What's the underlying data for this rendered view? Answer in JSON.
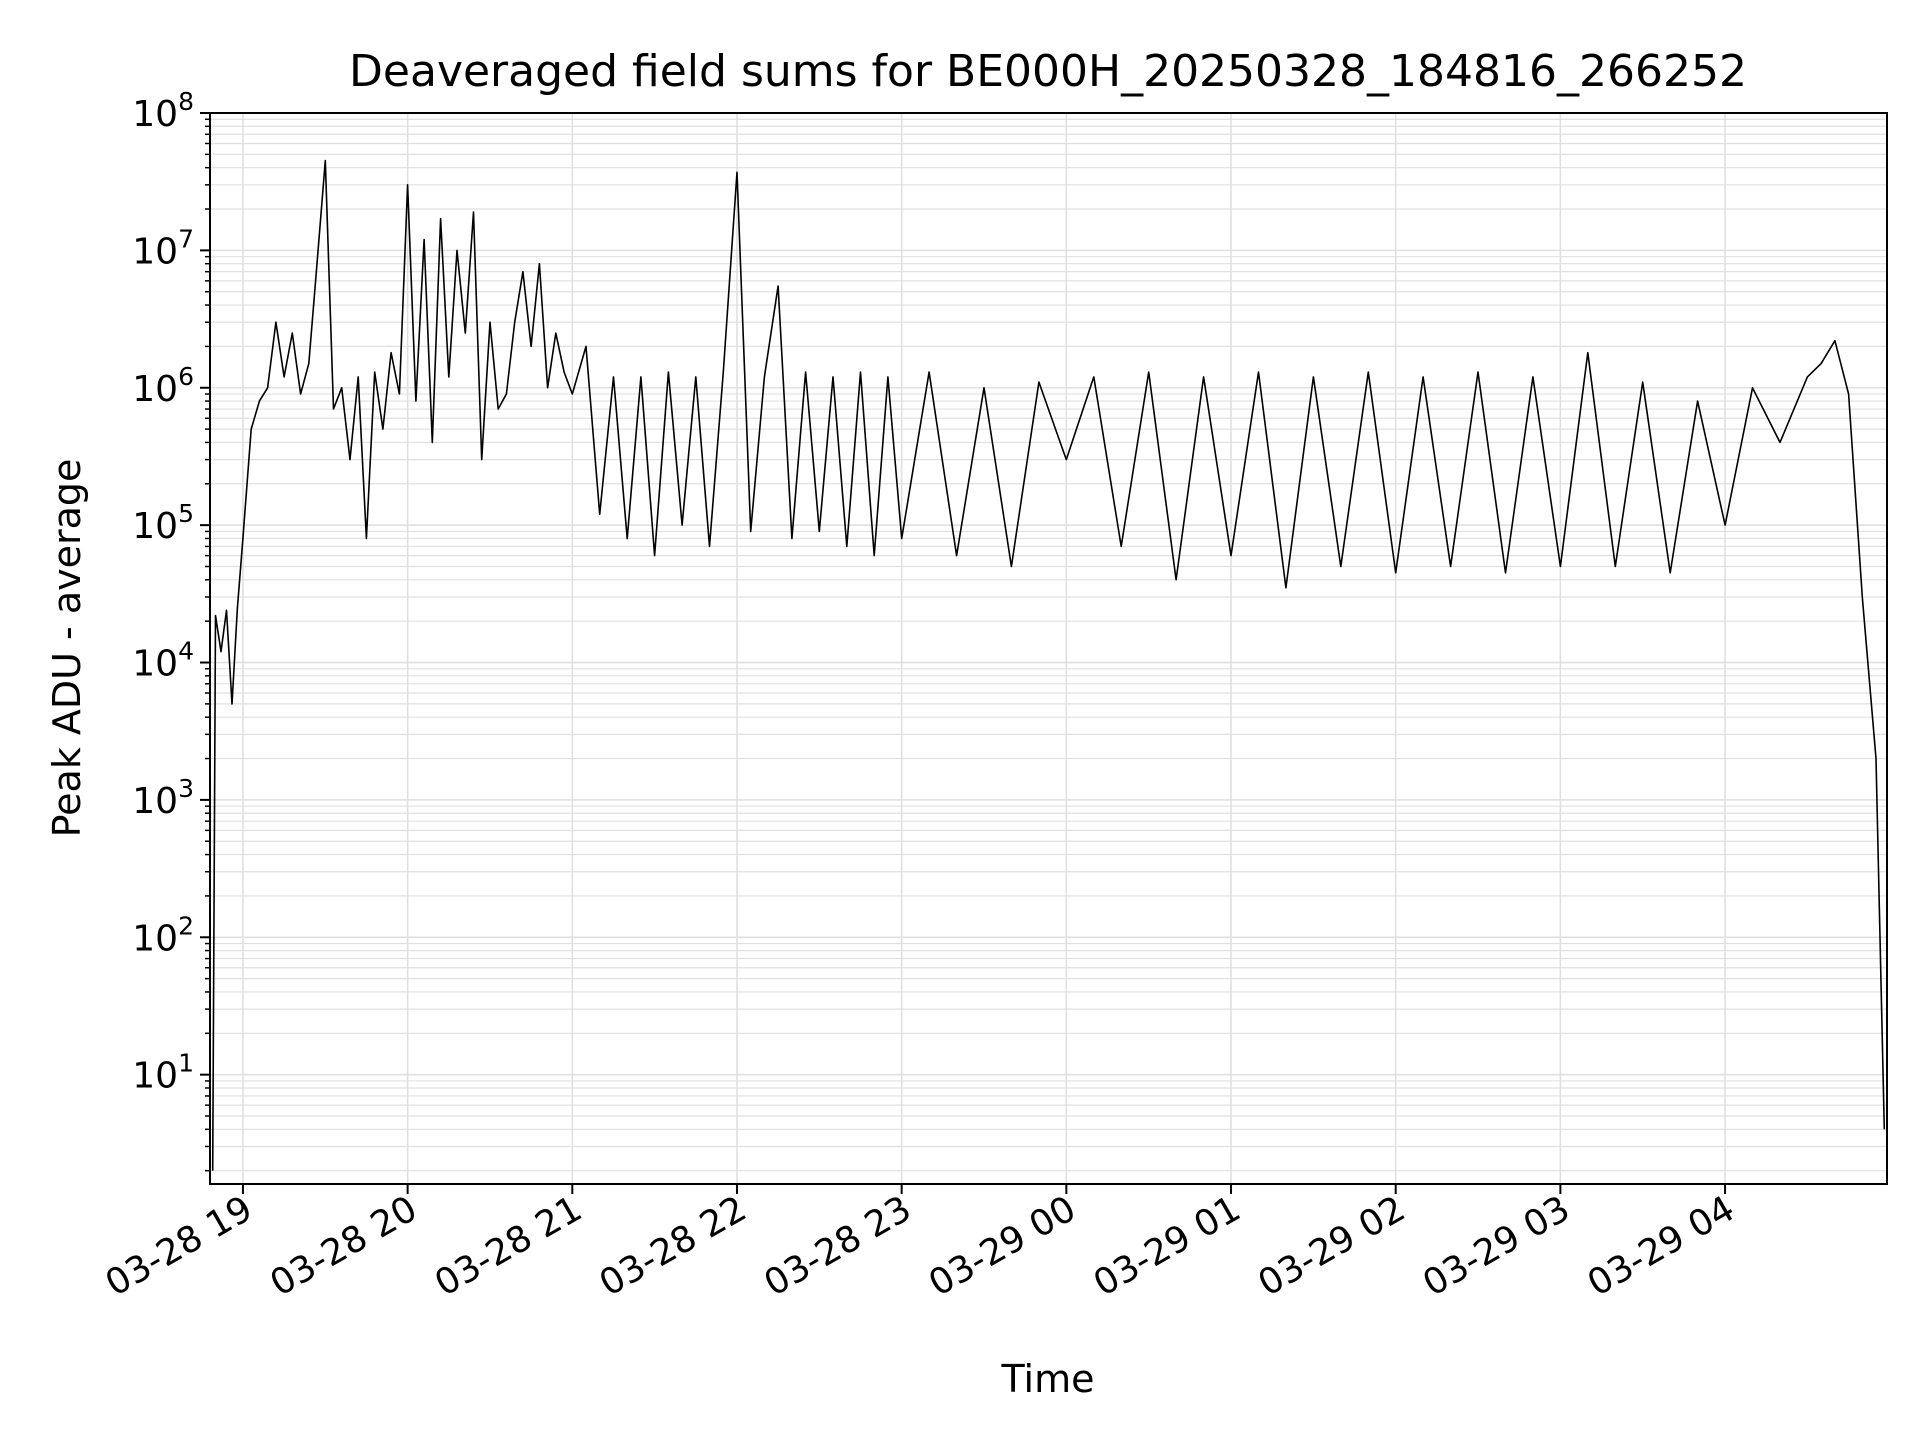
{
  "colors": {
    "line": "#000000",
    "grid": "#e0e0e0",
    "axes": "#000000",
    "background": "#ffffff"
  },
  "chart_data": {
    "type": "line",
    "title": "Deaveraged field sums for BE000H_20250328_184816_266252",
    "xlabel": "Time",
    "ylabel": "Peak ADU - average",
    "yscale": "log",
    "grid": true,
    "xlim": [
      "2025-03-28 18:48",
      "2025-03-29 04:59"
    ],
    "ylim": [
      1.6,
      100000000
    ],
    "x_ticks": [
      {
        "value": "2025-03-28 19:00",
        "label": "03-28 19"
      },
      {
        "value": "2025-03-28 20:00",
        "label": "03-28 20"
      },
      {
        "value": "2025-03-28 21:00",
        "label": "03-28 21"
      },
      {
        "value": "2025-03-28 22:00",
        "label": "03-28 22"
      },
      {
        "value": "2025-03-28 23:00",
        "label": "03-28 23"
      },
      {
        "value": "2025-03-29 00:00",
        "label": "03-29 00"
      },
      {
        "value": "2025-03-29 01:00",
        "label": "03-29 01"
      },
      {
        "value": "2025-03-29 02:00",
        "label": "03-29 02"
      },
      {
        "value": "2025-03-29 03:00",
        "label": "03-29 03"
      },
      {
        "value": "2025-03-29 04:00",
        "label": "03-29 04"
      }
    ],
    "y_ticks": [
      {
        "value": 10,
        "base": "10",
        "exp": "1"
      },
      {
        "value": 100,
        "base": "10",
        "exp": "2"
      },
      {
        "value": 1000,
        "base": "10",
        "exp": "3"
      },
      {
        "value": 10000,
        "base": "10",
        "exp": "4"
      },
      {
        "value": 100000,
        "base": "10",
        "exp": "5"
      },
      {
        "value": 1000000,
        "base": "10",
        "exp": "6"
      },
      {
        "value": 10000000,
        "base": "10",
        "exp": "7"
      },
      {
        "value": 100000000,
        "base": "10",
        "exp": "8"
      }
    ],
    "series": [
      {
        "x": [
          "2025-03-28 18:49",
          "2025-03-28 18:50",
          "2025-03-28 18:52",
          "2025-03-28 18:54",
          "2025-03-28 18:56",
          "2025-03-28 18:58",
          "2025-03-28 19:00",
          "2025-03-28 19:03",
          "2025-03-28 19:06",
          "2025-03-28 19:09",
          "2025-03-28 19:12",
          "2025-03-28 19:15",
          "2025-03-28 19:18",
          "2025-03-28 19:21",
          "2025-03-28 19:24",
          "2025-03-28 19:27",
          "2025-03-28 19:30",
          "2025-03-28 19:33",
          "2025-03-28 19:36",
          "2025-03-28 19:39",
          "2025-03-28 19:42",
          "2025-03-28 19:45",
          "2025-03-28 19:48",
          "2025-03-28 19:51",
          "2025-03-28 19:54",
          "2025-03-28 19:57",
          "2025-03-28 20:00",
          "2025-03-28 20:03",
          "2025-03-28 20:06",
          "2025-03-28 20:09",
          "2025-03-28 20:12",
          "2025-03-28 20:15",
          "2025-03-28 20:18",
          "2025-03-28 20:21",
          "2025-03-28 20:24",
          "2025-03-28 20:27",
          "2025-03-28 20:30",
          "2025-03-28 20:33",
          "2025-03-28 20:36",
          "2025-03-28 20:39",
          "2025-03-28 20:42",
          "2025-03-28 20:45",
          "2025-03-28 20:48",
          "2025-03-28 20:51",
          "2025-03-28 20:54",
          "2025-03-28 20:57",
          "2025-03-28 21:00",
          "2025-03-28 21:05",
          "2025-03-28 21:10",
          "2025-03-28 21:15",
          "2025-03-28 21:20",
          "2025-03-28 21:25",
          "2025-03-28 21:30",
          "2025-03-28 21:35",
          "2025-03-28 21:40",
          "2025-03-28 21:45",
          "2025-03-28 21:50",
          "2025-03-28 21:55",
          "2025-03-28 22:00",
          "2025-03-28 22:05",
          "2025-03-28 22:10",
          "2025-03-28 22:15",
          "2025-03-28 22:20",
          "2025-03-28 22:25",
          "2025-03-28 22:30",
          "2025-03-28 22:35",
          "2025-03-28 22:40",
          "2025-03-28 22:45",
          "2025-03-28 22:50",
          "2025-03-28 22:55",
          "2025-03-28 23:00",
          "2025-03-28 23:10",
          "2025-03-28 23:20",
          "2025-03-28 23:30",
          "2025-03-28 23:40",
          "2025-03-28 23:50",
          "2025-03-29 00:00",
          "2025-03-29 00:10",
          "2025-03-29 00:20",
          "2025-03-29 00:30",
          "2025-03-29 00:40",
          "2025-03-29 00:50",
          "2025-03-29 01:00",
          "2025-03-29 01:10",
          "2025-03-29 01:20",
          "2025-03-29 01:30",
          "2025-03-29 01:40",
          "2025-03-29 01:50",
          "2025-03-29 02:00",
          "2025-03-29 02:10",
          "2025-03-29 02:20",
          "2025-03-29 02:30",
          "2025-03-29 02:40",
          "2025-03-29 02:50",
          "2025-03-29 03:00",
          "2025-03-29 03:10",
          "2025-03-29 03:20",
          "2025-03-29 03:30",
          "2025-03-29 03:40",
          "2025-03-29 03:50",
          "2025-03-29 04:00",
          "2025-03-29 04:10",
          "2025-03-29 04:20",
          "2025-03-29 04:30",
          "2025-03-29 04:35",
          "2025-03-29 04:40",
          "2025-03-29 04:45",
          "2025-03-29 04:50",
          "2025-03-29 04:55",
          "2025-03-29 04:58"
        ],
        "values": [
          2.0,
          22000,
          12000,
          24000,
          5000,
          25000,
          80000,
          500000,
          800000,
          1000000,
          3000000,
          1200000,
          2500000,
          900000,
          1500000,
          8000000,
          45000000,
          700000,
          1000000,
          300000,
          1200000,
          80000,
          1300000,
          500000,
          1800000,
          900000,
          30000000,
          800000,
          12000000,
          400000,
          17000000,
          1200000,
          10000000,
          2500000,
          19000000,
          300000,
          3000000,
          700000,
          900000,
          3000000,
          7000000,
          2000000,
          8000000,
          1000000,
          2500000,
          1300000,
          900000,
          2000000,
          120000,
          1200000,
          80000,
          1200000,
          60000,
          1300000,
          100000,
          1200000,
          70000,
          1300000,
          37000000,
          90000,
          1200000,
          5500000,
          80000,
          1300000,
          90000,
          1200000,
          70000,
          1300000,
          60000,
          1200000,
          80000,
          1300000,
          60000,
          1000000,
          50000,
          1100000,
          300000,
          1200000,
          70000,
          1300000,
          40000,
          1200000,
          60000,
          1300000,
          35000,
          1200000,
          50000,
          1300000,
          45000,
          1200000,
          50000,
          1300000,
          45000,
          1200000,
          50000,
          1800000,
          50000,
          1100000,
          45000,
          800000,
          100000,
          1000000,
          400000,
          1200000,
          1500000,
          2200000,
          900000,
          30000,
          2000,
          4
        ]
      }
    ]
  }
}
